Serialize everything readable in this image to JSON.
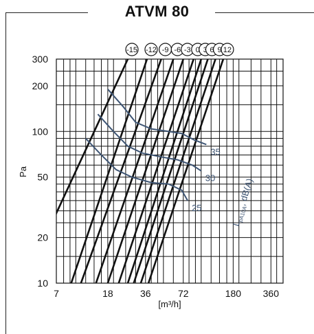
{
  "title": "ATVM 80",
  "chart_data": {
    "type": "line",
    "title": "ATVM 80",
    "xlabel": "[m³/h]",
    "ylabel": "Pa",
    "x_scale": "log",
    "y_scale": "log",
    "xlim": [
      7,
      450
    ],
    "ylim": [
      10,
      300
    ],
    "x_ticks": [
      {
        "v": 7,
        "label": "7"
      },
      {
        "v": 18,
        "label": "18"
      },
      {
        "v": 36,
        "label": "36"
      },
      {
        "v": 72,
        "label": "72"
      },
      {
        "v": 180,
        "label": "180"
      },
      {
        "v": 360,
        "label": "360"
      }
    ],
    "y_ticks": [
      {
        "v": 10,
        "label": "10"
      },
      {
        "v": 20,
        "label": "20"
      },
      {
        "v": 50,
        "label": "50"
      },
      {
        "v": 100,
        "label": "100"
      },
      {
        "v": 200,
        "label": "200"
      },
      {
        "v": 300,
        "label": "300"
      }
    ],
    "x_grid": [
      7,
      8,
      9,
      10,
      12,
      14,
      16,
      18,
      20,
      25,
      30,
      36,
      40,
      45,
      50,
      60,
      72,
      80,
      90,
      100,
      120,
      140,
      160,
      180,
      200,
      250,
      300,
      360,
      400,
      450
    ],
    "y_grid": [
      10,
      15,
      20,
      25,
      30,
      35,
      40,
      45,
      50,
      60,
      70,
      80,
      90,
      100,
      150,
      200,
      250,
      300
    ],
    "grid": true,
    "damper_settings": [
      {
        "label": "-15",
        "top": [
          26,
          300
        ],
        "bottom": [
          6,
          22
        ]
      },
      {
        "label": "-12",
        "top": [
          37,
          300
        ],
        "bottom": [
          9.2,
          10
        ]
      },
      {
        "label": "-9",
        "top": [
          48,
          300
        ],
        "bottom": [
          11,
          10
        ]
      },
      {
        "label": "-6",
        "top": [
          60,
          300
        ],
        "bottom": [
          14.5,
          10
        ]
      },
      {
        "label": "-3",
        "top": [
          72,
          300
        ],
        "bottom": [
          18,
          10
        ]
      },
      {
        "label": "0",
        "top": [
          87,
          300
        ],
        "bottom": [
          22,
          10
        ]
      },
      {
        "label": "3",
        "top": [
          100,
          300
        ],
        "bottom": [
          26,
          10
        ]
      },
      {
        "label": "6",
        "top": [
          113,
          300
        ],
        "bottom": [
          29,
          10
        ]
      },
      {
        "label": "9",
        "top": [
          130,
          300
        ],
        "bottom": [
          33,
          10
        ]
      },
      {
        "label": "12",
        "top": [
          150,
          300
        ],
        "bottom": [
          38,
          10
        ]
      }
    ],
    "series": [
      {
        "name": "35",
        "points": [
          [
            18,
            190
          ],
          [
            24,
            145
          ],
          [
            30,
            115
          ],
          [
            40,
            104
          ],
          [
            55,
            100
          ],
          [
            70,
            97
          ],
          [
            88,
            88
          ],
          [
            110,
            82
          ]
        ]
      },
      {
        "name": "30",
        "points": [
          [
            15,
            130
          ],
          [
            20,
            100
          ],
          [
            26,
            80
          ],
          [
            34,
            72
          ],
          [
            48,
            68
          ],
          [
            65,
            65
          ],
          [
            85,
            60
          ],
          [
            100,
            55
          ]
        ]
      },
      {
        "name": "25",
        "points": [
          [
            12,
            90
          ],
          [
            16,
            70
          ],
          [
            21,
            56
          ],
          [
            28,
            50
          ],
          [
            40,
            46
          ],
          [
            55,
            45
          ],
          [
            70,
            41
          ],
          [
            78,
            35
          ]
        ]
      }
    ],
    "series_label_text": "L",
    "series_label_sub": "pA10A",
    "series_label_unit": ", dB(A)",
    "colors": {
      "grid": "#111111",
      "series": "#3e5574",
      "frame": "#222222"
    }
  }
}
